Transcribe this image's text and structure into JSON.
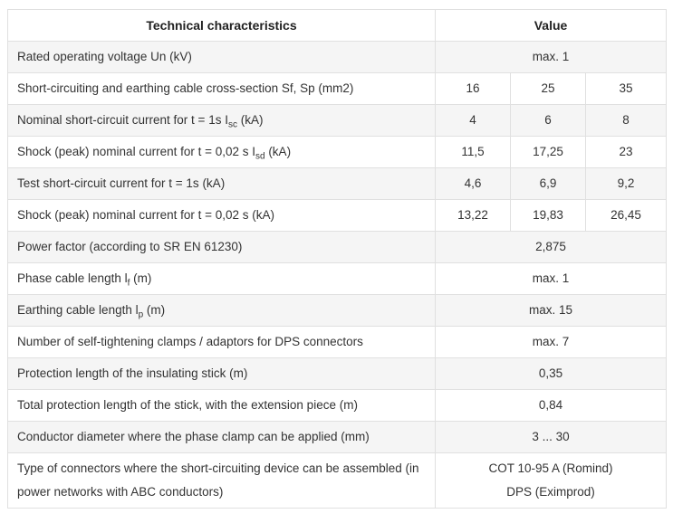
{
  "table": {
    "header": {
      "characteristics": "Technical characteristics",
      "value": "Value"
    },
    "colors": {
      "zebra": "#f5f5f5",
      "border": "#e0e0e0",
      "text": "#333333"
    },
    "rows": [
      {
        "label_parts": [
          {
            "text": "Rated operating voltage Un (kV)"
          }
        ],
        "values": [
          {
            "text": "max. 1",
            "span": 3
          }
        ]
      },
      {
        "label_parts": [
          {
            "text": "Short-circuiting and earthing cable cross-section Sf, Sp (mm2)"
          }
        ],
        "values": [
          {
            "text": "16"
          },
          {
            "text": "25"
          },
          {
            "text": "35"
          }
        ]
      },
      {
        "label_parts": [
          {
            "text": "Nominal short-circuit current for t = 1s I"
          },
          {
            "sub": "sc"
          },
          {
            "text": " (kA)"
          }
        ],
        "values": [
          {
            "text": "4"
          },
          {
            "text": "6"
          },
          {
            "text": "8"
          }
        ]
      },
      {
        "label_parts": [
          {
            "text": "Shock (peak) nominal current for t = 0,02 s I"
          },
          {
            "sub": "sd"
          },
          {
            "text": " (kA)"
          }
        ],
        "values": [
          {
            "text": "11,5"
          },
          {
            "text": "17,25"
          },
          {
            "text": "23"
          }
        ]
      },
      {
        "label_parts": [
          {
            "text": "Test short-circuit current for t = 1s (kA)"
          }
        ],
        "values": [
          {
            "text": "4,6"
          },
          {
            "text": "6,9"
          },
          {
            "text": "9,2"
          }
        ]
      },
      {
        "label_parts": [
          {
            "text": "Shock (peak) nominal current for t = 0,02 s (kA)"
          }
        ],
        "values": [
          {
            "text": "13,22"
          },
          {
            "text": "19,83"
          },
          {
            "text": "26,45"
          }
        ]
      },
      {
        "label_parts": [
          {
            "text": "Power factor (according to SR EN 61230)"
          }
        ],
        "values": [
          {
            "text": "2,875",
            "span": 3
          }
        ]
      },
      {
        "label_parts": [
          {
            "text": "Phase cable length l"
          },
          {
            "sub": "f"
          },
          {
            "text": " (m)"
          }
        ],
        "values": [
          {
            "text": "max. 1",
            "span": 3
          }
        ]
      },
      {
        "label_parts": [
          {
            "text": "Earthing cable length l"
          },
          {
            "sub": "p"
          },
          {
            "text": " (m)"
          }
        ],
        "values": [
          {
            "text": "max. 15",
            "span": 3
          }
        ]
      },
      {
        "label_parts": [
          {
            "text": "Number of self-tightening clamps / adaptors for DPS connectors"
          }
        ],
        "values": [
          {
            "text": "max. 7",
            "span": 3
          }
        ]
      },
      {
        "label_parts": [
          {
            "text": "Protection length of the insulating stick (m)"
          }
        ],
        "values": [
          {
            "text": "0,35",
            "span": 3
          }
        ]
      },
      {
        "label_parts": [
          {
            "text": "Total protection length of the stick, with the extension piece (m)"
          }
        ],
        "values": [
          {
            "text": "0,84",
            "span": 3
          }
        ]
      },
      {
        "label_parts": [
          {
            "text": "Conductor diameter where the phase clamp can be applied (mm)"
          }
        ],
        "values": [
          {
            "text": "3 ... 30",
            "span": 3
          }
        ]
      },
      {
        "label_parts": [
          {
            "text": "Type of connectors where the short-circuiting device can be assembled (in power networks with ABC conductors)"
          }
        ],
        "values": [
          {
            "lines": [
              "COT 10-95 A (Romind)",
              "DPS (Eximprod)"
            ],
            "span": 3
          }
        ]
      }
    ]
  }
}
